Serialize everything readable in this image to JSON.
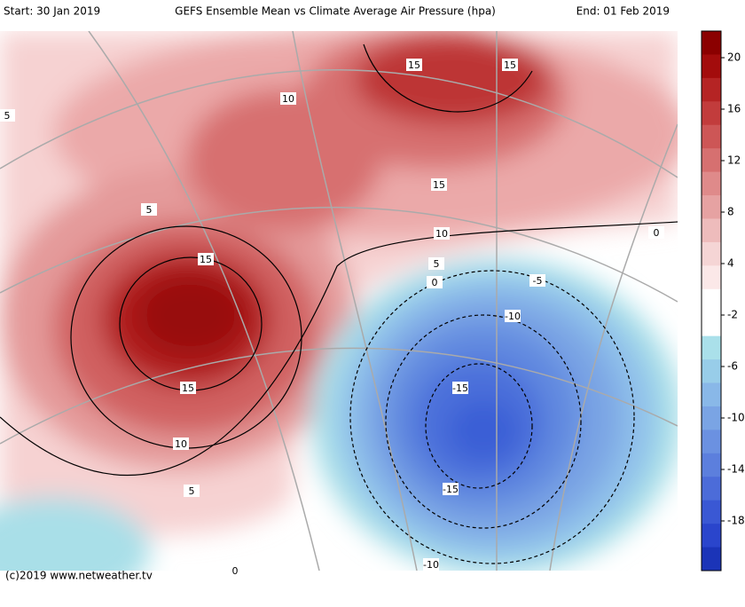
{
  "header": {
    "start": "Start: 30 Jan 2019",
    "title": "GEFS Ensemble Mean vs Climate Average Air Pressure (hpa)",
    "end": "End: 01 Feb 2019"
  },
  "colorbar": {
    "ticks": [
      20,
      16,
      12,
      8,
      4,
      -2,
      -6,
      -10,
      -14,
      -18
    ]
  },
  "contour_labels": [
    15,
    15,
    10,
    5,
    5,
    15,
    15,
    10,
    5,
    0,
    0,
    -5,
    -10,
    -15,
    15,
    10,
    5,
    -15,
    -10,
    0
  ],
  "footer": "(c)2019 www.netweather.tv"
}
